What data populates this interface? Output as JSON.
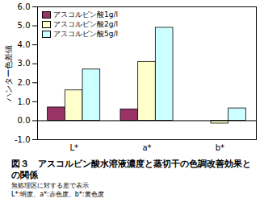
{
  "chart_data": {
    "type": "bar",
    "title": "図３　アスコルビン酸水溶液濃度と蒸切干の色調改善効果との関係",
    "annotations": [
      "無処理区に対する差で表示",
      "L*:明度、a*:赤色度、b*:黄色度"
    ],
    "y_label": "ハンター色差値",
    "categories": [
      "L*",
      "a*",
      "b*"
    ],
    "series": [
      {
        "name": "アスコルビン酸1g/l",
        "color": "#993366",
        "values": [
          0.7,
          0.6,
          0
        ]
      },
      {
        "name": "アスコルビン酸2g/l",
        "color": "#ffffcc",
        "values": [
          1.6,
          3.1,
          -0.15
        ]
      },
      {
        "name": "アスコルビン酸5g/l",
        "color": "#ccffff",
        "values": [
          2.7,
          4.9,
          0.65
        ]
      }
    ],
    "ylim": [
      -1,
      6
    ],
    "yticks": [
      {
        "value": -1,
        "label": "-1.0"
      },
      {
        "value": 0,
        "label": "0.0"
      },
      {
        "value": 1,
        "label": "1.0"
      },
      {
        "value": 2,
        "label": "2.0"
      },
      {
        "value": 3,
        "label": "3.0"
      },
      {
        "value": 4,
        "label": "4.0"
      },
      {
        "value": 5,
        "label": "5.0"
      },
      {
        "value": 6,
        "label": "6.0"
      }
    ],
    "grid": false,
    "legend": "top-left"
  }
}
